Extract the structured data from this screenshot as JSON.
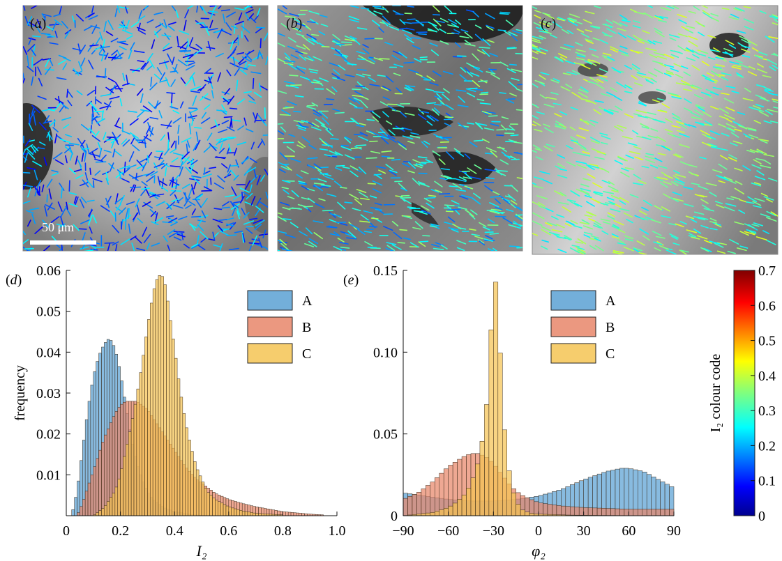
{
  "panels": {
    "a": {
      "label": "(a)",
      "letter": "a",
      "scale_bar": "50 μm"
    },
    "b": {
      "label": "(b)",
      "letter": "b"
    },
    "c": {
      "label": "(c)",
      "letter": "c"
    }
  },
  "colorbar": {
    "label": "I₂ colour code",
    "ticks": [
      "0",
      "0.1",
      "0.2",
      "0.3",
      "0.4",
      "0.5",
      "0.6",
      "0.7"
    ],
    "colormap": "jet",
    "range": [
      0,
      0.7
    ]
  },
  "series_colors": {
    "A": "#5aa1d4",
    "B": "#e8866a",
    "C": "#f5c453"
  },
  "chart_data": [
    {
      "panel": "(d)",
      "type": "bar",
      "histogram": true,
      "xlabel": "I₂",
      "ylabel": "frequency",
      "xlim": [
        0,
        1.0
      ],
      "ylim": [
        0,
        0.06
      ],
      "xticks": [
        "0",
        "0.2",
        "0.4",
        "0.6",
        "0.8",
        "1.0"
      ],
      "yticks": [
        "0.01",
        "0.02",
        "0.03",
        "0.04",
        "0.05",
        "0.06"
      ],
      "bin_width": 0.01,
      "legend_position": "top-right",
      "series": [
        {
          "name": "A",
          "x": [
            0.02,
            0.04,
            0.06,
            0.08,
            0.1,
            0.12,
            0.14,
            0.16,
            0.18,
            0.2,
            0.22,
            0.24,
            0.26,
            0.28,
            0.3,
            0.32,
            0.34,
            0.36,
            0.38,
            0.4,
            0.42,
            0.44,
            0.46,
            0.48,
            0.5,
            0.55,
            0.6
          ],
          "values": [
            0.0,
            0.006,
            0.016,
            0.026,
            0.034,
            0.039,
            0.042,
            0.0435,
            0.041,
            0.035,
            0.027,
            0.019,
            0.013,
            0.009,
            0.006,
            0.004,
            0.003,
            0.002,
            0.0015,
            0.001,
            0.0008,
            0.0005,
            0.0003,
            0.0002,
            0.0001,
            0.0,
            0.0
          ]
        },
        {
          "name": "B",
          "x": [
            0.04,
            0.06,
            0.08,
            0.1,
            0.12,
            0.14,
            0.16,
            0.18,
            0.2,
            0.22,
            0.24,
            0.26,
            0.28,
            0.3,
            0.32,
            0.34,
            0.36,
            0.38,
            0.4,
            0.42,
            0.44,
            0.46,
            0.48,
            0.5,
            0.52,
            0.55,
            0.6,
            0.65,
            0.7,
            0.75,
            0.8,
            0.85,
            0.9,
            0.95
          ],
          "values": [
            0.0,
            0.003,
            0.007,
            0.011,
            0.015,
            0.019,
            0.022,
            0.025,
            0.027,
            0.028,
            0.028,
            0.028,
            0.027,
            0.026,
            0.024,
            0.022,
            0.02,
            0.018,
            0.016,
            0.014,
            0.012,
            0.0105,
            0.009,
            0.008,
            0.007,
            0.0055,
            0.004,
            0.003,
            0.0022,
            0.0016,
            0.001,
            0.0007,
            0.0004,
            0.0002
          ]
        },
        {
          "name": "C",
          "x": [
            0.1,
            0.14,
            0.18,
            0.2,
            0.22,
            0.24,
            0.26,
            0.28,
            0.3,
            0.31,
            0.32,
            0.33,
            0.34,
            0.35,
            0.36,
            0.37,
            0.38,
            0.4,
            0.42,
            0.44,
            0.46,
            0.48,
            0.5,
            0.52,
            0.55,
            0.6,
            0.65,
            0.7,
            0.8
          ],
          "values": [
            0.0,
            0.002,
            0.006,
            0.01,
            0.016,
            0.022,
            0.029,
            0.037,
            0.046,
            0.05,
            0.054,
            0.057,
            0.0585,
            0.059,
            0.058,
            0.055,
            0.05,
            0.041,
            0.031,
            0.023,
            0.017,
            0.012,
            0.009,
            0.006,
            0.004,
            0.0022,
            0.0012,
            0.0006,
            0.0002
          ]
        }
      ]
    },
    {
      "panel": "(e)",
      "type": "bar",
      "histogram": true,
      "xlabel": "φ₂",
      "ylabel": "",
      "xlim": [
        -90,
        90
      ],
      "ylim": [
        0,
        0.15
      ],
      "xticks": [
        "−90",
        "−60",
        "−30",
        "0",
        "30",
        "60",
        "90"
      ],
      "yticks": [
        "0",
        "0.05",
        "0.10",
        "0.15"
      ],
      "bin_width": 3,
      "legend_position": "top-right",
      "series": [
        {
          "name": "A",
          "x": [
            -90,
            -75,
            -60,
            -45,
            -30,
            -15,
            0,
            15,
            30,
            45,
            55,
            60,
            70,
            80,
            90
          ],
          "values": [
            0.014,
            0.012,
            0.01,
            0.009,
            0.009,
            0.01,
            0.012,
            0.016,
            0.022,
            0.027,
            0.029,
            0.029,
            0.027,
            0.022,
            0.017
          ]
        },
        {
          "name": "B",
          "x": [
            -90,
            -80,
            -70,
            -60,
            -50,
            -45,
            -40,
            -35,
            -30,
            -25,
            -20,
            -15,
            -10,
            -5,
            0,
            15,
            30,
            60,
            90
          ],
          "values": [
            0.01,
            0.014,
            0.021,
            0.03,
            0.036,
            0.038,
            0.038,
            0.036,
            0.032,
            0.026,
            0.02,
            0.015,
            0.012,
            0.01,
            0.008,
            0.006,
            0.005,
            0.004,
            0.004
          ]
        },
        {
          "name": "C",
          "x": [
            -90,
            -70,
            -60,
            -55,
            -50,
            -45,
            -40,
            -37,
            -34,
            -31,
            -28,
            -25,
            -22,
            -19,
            -16,
            -13,
            -10,
            -5,
            0,
            20,
            40,
            60,
            90
          ],
          "values": [
            0.0,
            0.002,
            0.005,
            0.008,
            0.012,
            0.019,
            0.033,
            0.048,
            0.072,
            0.122,
            0.147,
            0.09,
            0.045,
            0.024,
            0.012,
            0.006,
            0.003,
            0.0015,
            0.001,
            0.0004,
            0.0002,
            0.0001,
            0.0
          ]
        }
      ]
    }
  ]
}
